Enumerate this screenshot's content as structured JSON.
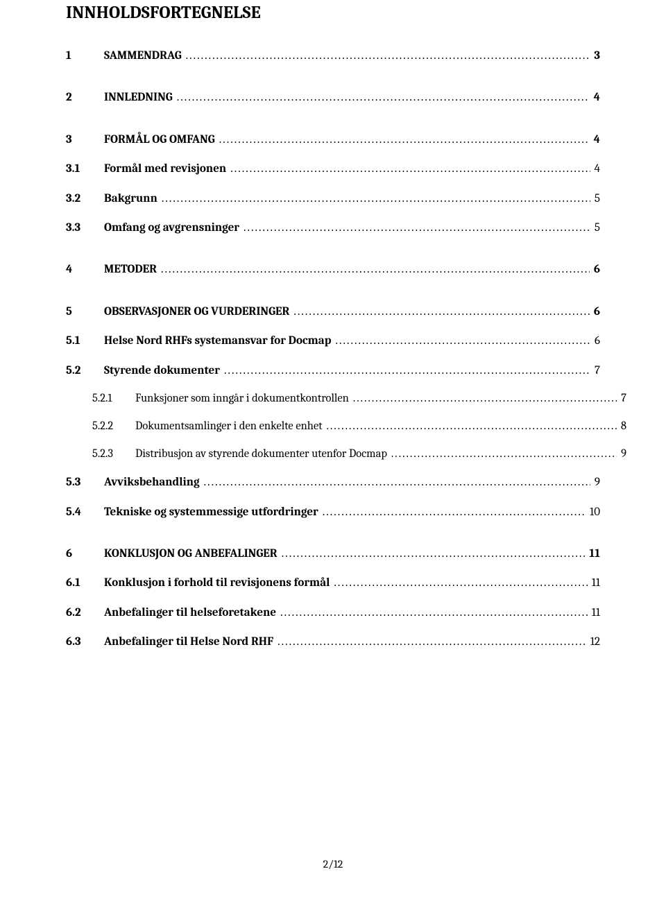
{
  "heading": "INNHOLDSFORTEGNELSE",
  "footer": "2/12",
  "toc": [
    {
      "level": 1,
      "num": "1",
      "title": "SAMMENDRAG",
      "page": "3"
    },
    {
      "level": 1,
      "num": "2",
      "title": "INNLEDNING",
      "page": "4"
    },
    {
      "level": 1,
      "num": "3",
      "title": "FORMÅL OG OMFANG",
      "page": "4"
    },
    {
      "level": 2,
      "num": "3.1",
      "title": "Formål med revisjonen",
      "page": "4"
    },
    {
      "level": 2,
      "num": "3.2",
      "title": "Bakgrunn",
      "page": "5"
    },
    {
      "level": 2,
      "num": "3.3",
      "title": "Omfang og avgrensninger",
      "page": "5"
    },
    {
      "level": 1,
      "num": "4",
      "title": "METODER",
      "page": "6"
    },
    {
      "level": 1,
      "num": "5",
      "title": "OBSERVASJONER OG VURDERINGER",
      "page": "6"
    },
    {
      "level": 2,
      "num": "5.1",
      "title": "Helse Nord RHFs systemansvar for Docmap",
      "page": "6"
    },
    {
      "level": 2,
      "num": "5.2",
      "title": "Styrende dokumenter",
      "page": "7"
    },
    {
      "level": 3,
      "num": "5.2.1",
      "title": "Funksjoner som inngår i dokumentkontrollen",
      "page": "7"
    },
    {
      "level": 3,
      "num": "5.2.2",
      "title": "Dokumentsamlinger i den enkelte enhet",
      "page": "8"
    },
    {
      "level": 3,
      "num": "5.2.3",
      "title": "Distribusjon av styrende dokumenter utenfor Docmap",
      "page": "9"
    },
    {
      "level": 2,
      "num": "5.3",
      "title": "Avviksbehandling",
      "page": "9"
    },
    {
      "level": 2,
      "num": "5.4",
      "title": "Tekniske og systemmessige utfordringer",
      "page": "10"
    },
    {
      "level": 1,
      "num": "6",
      "title": "KONKLUSJON OG ANBEFALINGER",
      "page": "11"
    },
    {
      "level": 2,
      "num": "6.1",
      "title": "Konklusjon i forhold til revisjonens formål",
      "page": "11"
    },
    {
      "level": 2,
      "num": "6.2",
      "title": "Anbefalinger til helseforetakene",
      "page": "11"
    },
    {
      "level": 2,
      "num": "6.3",
      "title": "Anbefalinger til Helse Nord RHF",
      "page": "12"
    }
  ]
}
